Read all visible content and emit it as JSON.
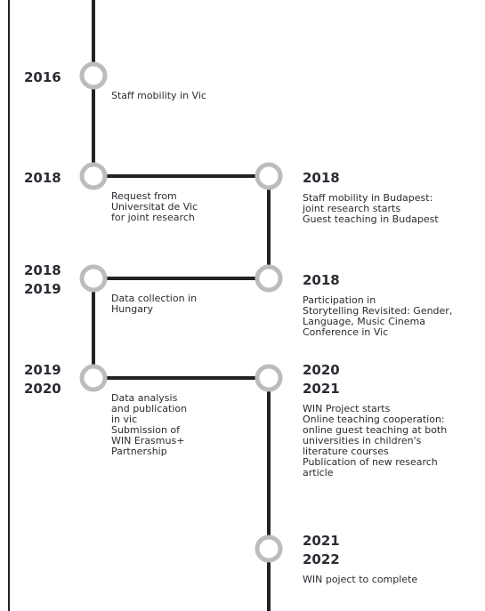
{
  "left": [
    {
      "years": [
        "2016"
      ],
      "lines": [
        "Staff mobility in Vic"
      ]
    },
    {
      "years": [
        "2018"
      ],
      "lines": [
        "Request from",
        "Universitat de Vic",
        "for joint research"
      ]
    },
    {
      "years": [
        "2018",
        "2019"
      ],
      "lines": [
        "Data collection in",
        "Hungary"
      ]
    },
    {
      "years": [
        "2019",
        "2020"
      ],
      "lines": [
        "Data analysis",
        "and publication",
        "in vic",
        "Submission of",
        "WIN Erasmus+",
        "Partnership"
      ]
    }
  ],
  "right": [
    {
      "years": [
        "2018"
      ],
      "lines": [
        "Staff mobility in Budapest:",
        "joint research starts",
        "Guest teaching in Budapest"
      ]
    },
    {
      "years": [
        "2018"
      ],
      "lines": [
        "Participation in",
        "Storytelling Revisited: Gender,",
        "Language, Music Cinema",
        "Conference in Vic"
      ]
    },
    {
      "years": [
        "2020",
        "2021"
      ],
      "lines": [
        "WIN Project starts",
        "Online teaching cooperation:",
        "online guest teaching at both",
        "universities in children's",
        "literature courses",
        "Publication of new research",
        "article"
      ]
    },
    {
      "years": [
        "2021",
        "2022"
      ],
      "lines": [
        "WIN poject to complete"
      ]
    }
  ]
}
